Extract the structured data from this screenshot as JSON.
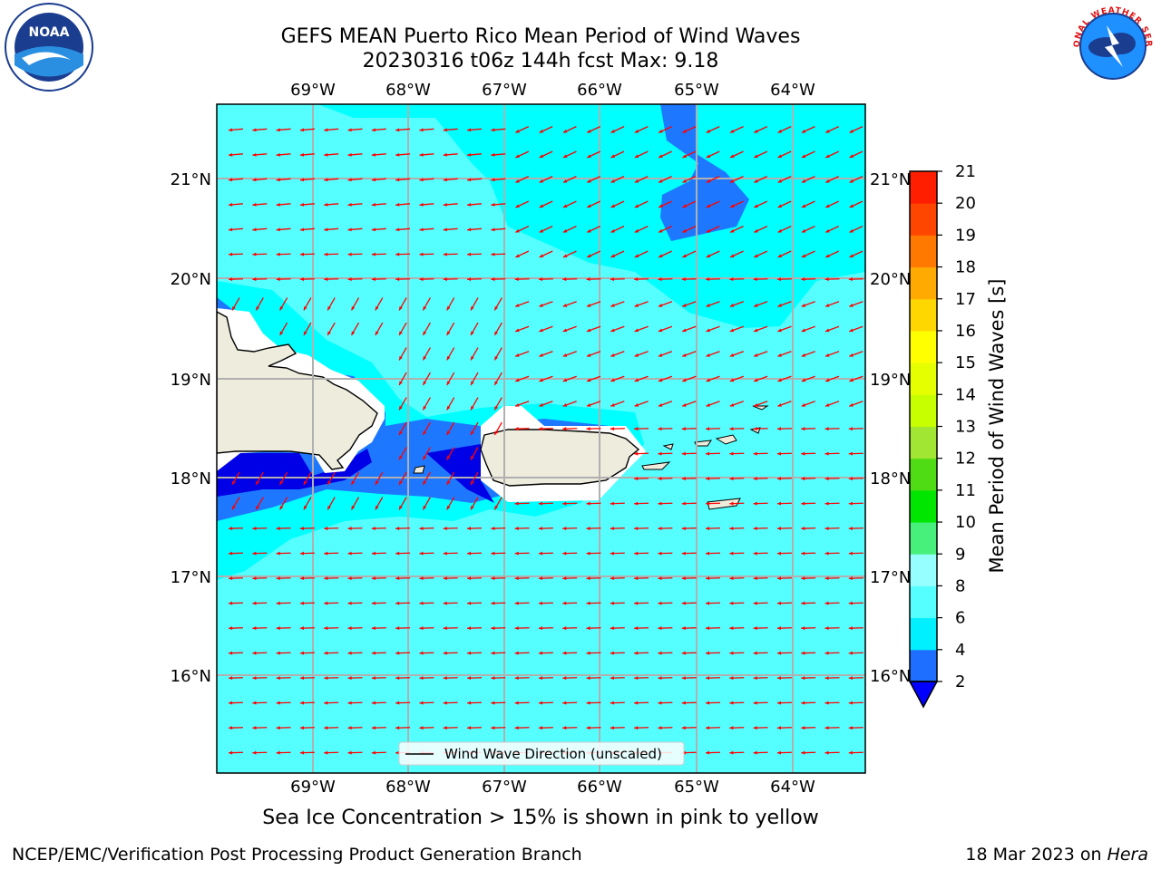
{
  "header": {
    "title_line1": "GEFS MEAN Puerto Rico Mean Period of Wind Waves",
    "title_line2": "20230316 t06z 144h fcst   Max: 9.18"
  },
  "logos": {
    "left": {
      "icon": "noaa-logo-icon",
      "text": "NOAA"
    },
    "right": {
      "icon": "nws-logo-icon",
      "text": "NATIONAL WEATHER SERVICE"
    }
  },
  "map": {
    "lon_labels": [
      "69°W",
      "68°W",
      "67°W",
      "66°W",
      "65°W",
      "64°W"
    ],
    "lat_labels": [
      "21°N",
      "20°N",
      "19°N",
      "18°N",
      "17°N",
      "16°N"
    ],
    "legend_label": "Wind Wave Direction (unscaled)",
    "colors": {
      "ocean_main": "#55ffff",
      "ocean_light": "#00ffff",
      "ocean_mid": "#1e78ff",
      "ocean_deep": "#0000e6",
      "land": "#eeecdc",
      "arrow": "#ff0000",
      "grid": "#b0b0b0"
    }
  },
  "colorbar": {
    "label": "Mean Period of Wind Waves [s]",
    "ticks": [
      "2",
      "4",
      "6",
      "8",
      "9",
      "10",
      "11",
      "12",
      "13",
      "14",
      "15",
      "16",
      "17",
      "18",
      "19",
      "20",
      "21"
    ],
    "colors": [
      "#1e6eff",
      "#00f0ff",
      "#55ffff",
      "#96ffff",
      "#46f07a",
      "#00e600",
      "#50dc14",
      "#a0e632",
      "#c8ff00",
      "#e6ff00",
      "#ffff00",
      "#ffd700",
      "#ffaa00",
      "#ff7800",
      "#ff4600",
      "#ff1e00"
    ],
    "under_color": "#0000ff"
  },
  "caption": "Sea Ice Concentration > 15% is shown in pink to yellow",
  "footer": {
    "left": "NCEP/EMC/Verification Post Processing Product Generation Branch",
    "right_date": "18 Mar 2023 on ",
    "right_host": "Hera"
  }
}
